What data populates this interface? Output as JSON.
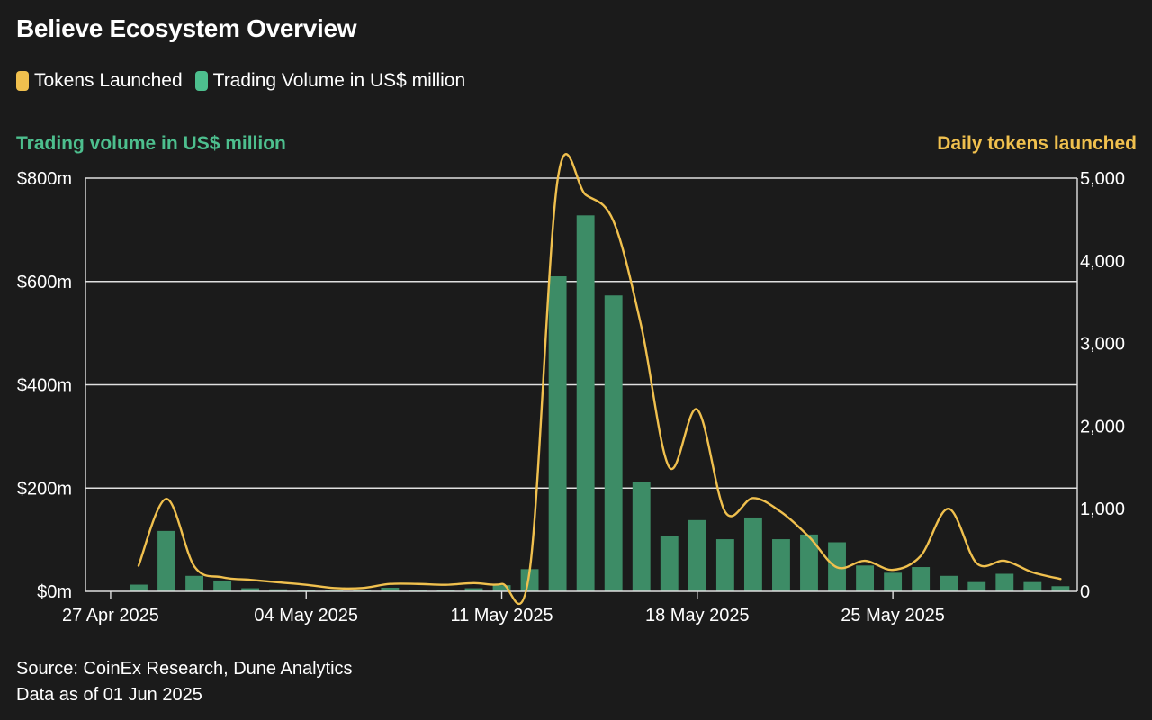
{
  "header": {
    "title": "Believe Ecosystem Overview"
  },
  "legend": {
    "tokens_label": "Tokens Launched",
    "volume_label": "Trading Volume in US$ million"
  },
  "colors": {
    "tokens": "#f0c04e",
    "volume": "#3d8c66",
    "volume_legend": "#4dbf8e",
    "grid": "#e0e0e0",
    "background": "#1b1b1b"
  },
  "footer": {
    "source": "Source: CoinEx Research, Dune Analytics",
    "asof": "Data as of 01 Jun 2025"
  },
  "chart_data": {
    "type": "bar",
    "title": "Believe Ecosystem Overview",
    "ylabel_left": "Trading volume in US$ million",
    "ylabel_right": "Daily tokens launched",
    "ylim_left": [
      0,
      800
    ],
    "ylim_right": [
      0,
      5000
    ],
    "left_ticks": [
      {
        "value": 0,
        "label": "$0m"
      },
      {
        "value": 200,
        "label": "$200m"
      },
      {
        "value": 400,
        "label": "$400m"
      },
      {
        "value": 600,
        "label": "$600m"
      },
      {
        "value": 800,
        "label": "$800m"
      }
    ],
    "right_ticks": [
      {
        "value": 0,
        "label": "0"
      },
      {
        "value": 1000,
        "label": "1,000"
      },
      {
        "value": 2000,
        "label": "2,000"
      },
      {
        "value": 3000,
        "label": "3,000"
      },
      {
        "value": 4000,
        "label": "4,000"
      },
      {
        "value": 5000,
        "label": "5,000"
      }
    ],
    "x_ticks": [
      {
        "day": 0,
        "label": "27 Apr 2025"
      },
      {
        "day": 7,
        "label": "04 May 2025"
      },
      {
        "day": 14,
        "label": "11 May 2025"
      },
      {
        "day": 21,
        "label": "18 May 2025"
      },
      {
        "day": 28,
        "label": "25 May 2025"
      }
    ],
    "x_range_days": [
      -0.9,
      34.6
    ],
    "days": [
      1,
      2,
      3,
      4,
      5,
      6,
      7,
      8,
      9,
      10,
      11,
      12,
      13,
      14,
      15,
      16,
      17,
      18,
      19,
      20,
      21,
      22,
      23,
      24,
      25,
      26,
      27,
      28,
      29,
      30,
      31,
      32,
      33,
      34
    ],
    "series": [
      {
        "name": "Trading Volume in US$ million",
        "type": "bar",
        "axis": "left",
        "values": [
          13,
          117,
          30,
          21,
          6,
          4,
          3,
          2,
          2,
          7,
          3,
          3,
          6,
          12,
          43,
          610,
          728,
          573,
          211,
          108,
          138,
          101,
          143,
          101,
          110,
          95,
          50,
          36,
          47,
          30,
          18,
          34,
          18,
          10
        ]
      },
      {
        "name": "Tokens Launched",
        "type": "line",
        "axis": "right",
        "smooth": true,
        "values": [
          310,
          1120,
          300,
          170,
          140,
          110,
          80,
          40,
          40,
          90,
          90,
          80,
          100,
          90,
          250,
          4980,
          4800,
          4480,
          3200,
          1500,
          2200,
          960,
          1130,
          960,
          660,
          290,
          370,
          260,
          430,
          1000,
          340,
          370,
          230,
          150
        ]
      }
    ]
  }
}
